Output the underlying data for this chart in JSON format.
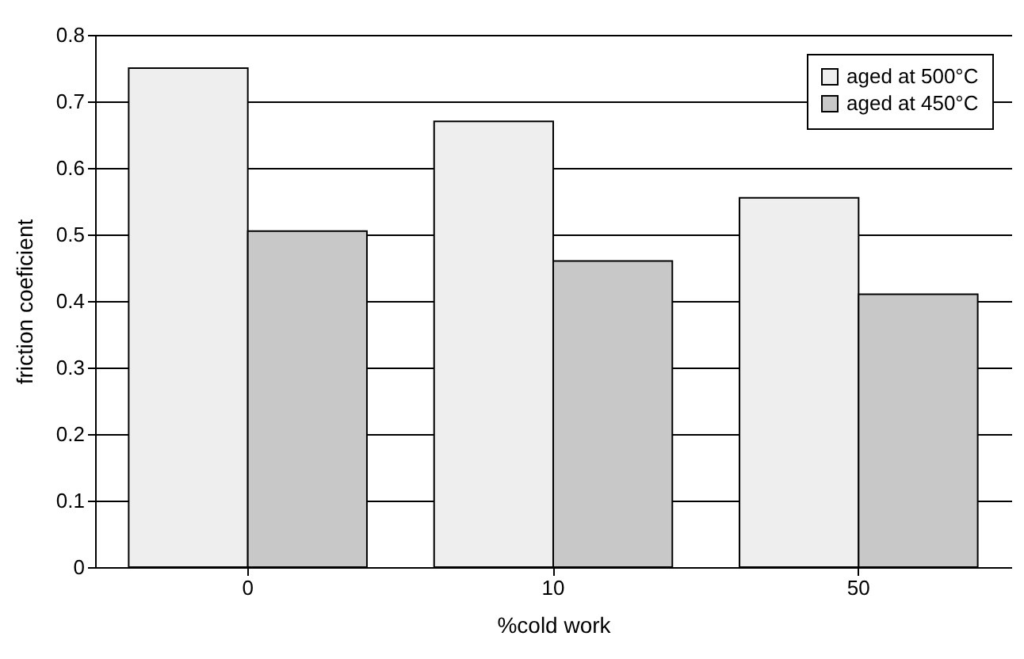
{
  "chart_data": {
    "type": "bar",
    "xlabel": "%cold work",
    "ylabel": "friction coeficient",
    "categories": [
      "0",
      "10",
      "50"
    ],
    "series": [
      {
        "name": "aged at 500°C",
        "color": "#eeeeee",
        "values": [
          0.75,
          0.67,
          0.555
        ]
      },
      {
        "name": "aged at 450°C",
        "color": "#c8c8c8",
        "values": [
          0.505,
          0.46,
          0.41
        ]
      }
    ],
    "ylim": [
      0,
      0.8
    ],
    "yticks": [
      0,
      0.1,
      0.2,
      0.3,
      0.4,
      0.5,
      0.6,
      0.7,
      0.8
    ],
    "grid": "y",
    "legend": "top right"
  }
}
